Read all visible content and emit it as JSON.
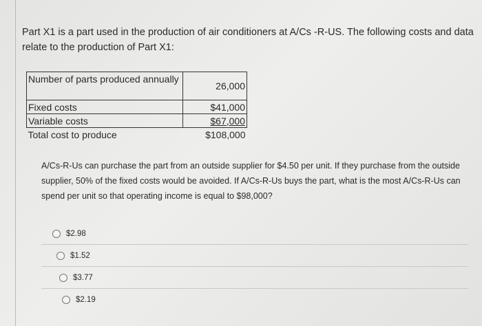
{
  "intro": "Part X1 is a part used in the production of air conditioners at A/Cs -R-US. The following costs and data relate to the production of Part X1:",
  "table": {
    "rows": [
      {
        "label": "Number of parts produced annually",
        "value": "26,000"
      },
      {
        "label": "Fixed costs",
        "value": "$41,000"
      },
      {
        "label": "Variable costs",
        "value": "$67,000"
      },
      {
        "label": "Total cost to produce",
        "value": "$108,000"
      }
    ]
  },
  "question": "A/Cs-R-Us can purchase the part from an outside supplier for $4.50 per unit. If they purchase from the outside supplier, 50% of the fixed costs would be avoided. If A/Cs-R-Us buys the part, what is the most A/Cs-R-Us can spend per unit so that operating income is equal to $98,000?",
  "options": [
    "$2.98",
    "$1.52",
    "$3.77",
    "$2.19"
  ]
}
